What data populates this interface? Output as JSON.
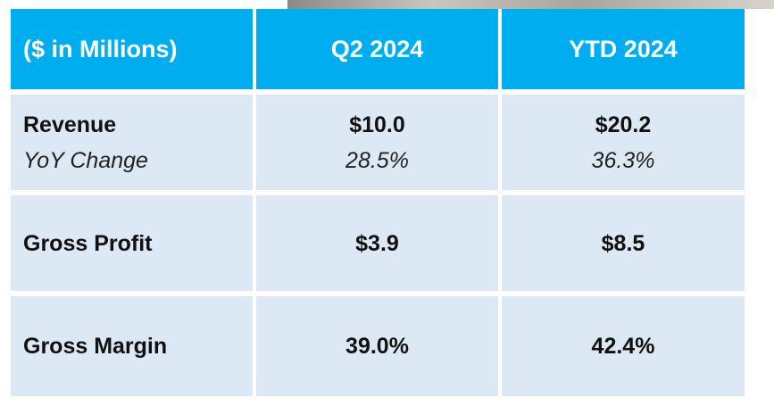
{
  "table": {
    "header": [
      "($ in Millions)",
      "Q2 2024",
      "YTD 2024"
    ],
    "rows": [
      [
        [
          "Revenue",
          "YoY Change"
        ],
        [
          "$10.0",
          "28.5%"
        ],
        [
          "$20.2",
          "36.3%"
        ]
      ],
      [
        [
          "Gross Profit"
        ],
        [
          "$3.9"
        ],
        [
          "$8.5"
        ]
      ],
      [
        [
          "Gross Margin"
        ],
        [
          "39.0%"
        ],
        [
          "42.4%"
        ]
      ]
    ]
  }
}
